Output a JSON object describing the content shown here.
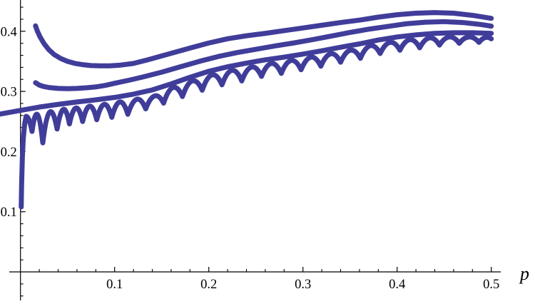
{
  "figure": {
    "background": "#ffffff",
    "axis_color": "#000000",
    "curve_color": "#403D9A"
  },
  "chart_data": {
    "type": "line",
    "title": "",
    "xlabel": "p",
    "ylabel": "",
    "xlim": [
      0,
      0.5
    ],
    "ylim": [
      0,
      0.45
    ],
    "grid": false,
    "legend": null,
    "x_axis": {
      "major_ticks": [
        0.1,
        0.2,
        0.3,
        0.4,
        0.5
      ],
      "major_tick_labels": [
        "0.1",
        "0.2",
        "0.3",
        "0.4",
        "0.5"
      ],
      "minor_ticks": [
        0.02,
        0.04,
        0.06,
        0.08,
        0.12,
        0.14,
        0.16,
        0.18,
        0.22,
        0.24,
        0.26,
        0.28,
        0.32,
        0.34,
        0.36,
        0.38,
        0.42,
        0.44,
        0.46,
        0.48
      ]
    },
    "y_axis": {
      "major_ticks": [
        0.1,
        0.2,
        0.3,
        0.4
      ],
      "major_tick_labels": [
        "0.1",
        "0.2",
        "0.3",
        "0.4"
      ],
      "minor_ticks": [
        -0.04,
        -0.02,
        0.02,
        0.04,
        0.06,
        0.08,
        0.12,
        0.14,
        0.16,
        0.18,
        0.22,
        0.24,
        0.26,
        0.28,
        0.32,
        0.34,
        0.36,
        0.38,
        0.42,
        0.44
      ]
    },
    "style": {
      "stroke": "#403D9A",
      "stroke_width": 7
    },
    "series": [
      {
        "name": "curve-1-top",
        "render": "smooth",
        "points": [
          [
            0.016,
            0.409
          ],
          [
            0.018,
            0.4
          ],
          [
            0.021,
            0.39
          ],
          [
            0.025,
            0.3795
          ],
          [
            0.03,
            0.3695
          ],
          [
            0.036,
            0.361
          ],
          [
            0.043,
            0.3545
          ],
          [
            0.05,
            0.35
          ],
          [
            0.058,
            0.3465
          ],
          [
            0.066,
            0.3445
          ],
          [
            0.075,
            0.343
          ],
          [
            0.085,
            0.3425
          ],
          [
            0.095,
            0.3425
          ],
          [
            0.105,
            0.3435
          ],
          [
            0.12,
            0.3465
          ],
          [
            0.135,
            0.3525
          ],
          [
            0.15,
            0.359
          ],
          [
            0.165,
            0.3655
          ],
          [
            0.18,
            0.372
          ],
          [
            0.2,
            0.3805
          ],
          [
            0.22,
            0.3875
          ],
          [
            0.24,
            0.3925
          ],
          [
            0.26,
            0.3965
          ],
          [
            0.28,
            0.401
          ],
          [
            0.3,
            0.4055
          ],
          [
            0.32,
            0.41
          ],
          [
            0.34,
            0.4145
          ],
          [
            0.36,
            0.4185
          ],
          [
            0.38,
            0.4235
          ],
          [
            0.4,
            0.4275
          ],
          [
            0.42,
            0.43
          ],
          [
            0.44,
            0.431
          ],
          [
            0.46,
            0.43
          ],
          [
            0.48,
            0.4265
          ],
          [
            0.5,
            0.4215
          ]
        ]
      },
      {
        "name": "curve-2",
        "render": "smooth",
        "points": [
          [
            0.016,
            0.3145
          ],
          [
            0.02,
            0.3105
          ],
          [
            0.025,
            0.308
          ],
          [
            0.03,
            0.3065
          ],
          [
            0.04,
            0.305
          ],
          [
            0.05,
            0.3045
          ],
          [
            0.06,
            0.305
          ],
          [
            0.07,
            0.306
          ],
          [
            0.08,
            0.3075
          ],
          [
            0.09,
            0.31
          ],
          [
            0.1,
            0.3135
          ],
          [
            0.115,
            0.3185
          ],
          [
            0.13,
            0.324
          ],
          [
            0.15,
            0.332
          ],
          [
            0.17,
            0.341
          ],
          [
            0.19,
            0.35
          ],
          [
            0.21,
            0.358
          ],
          [
            0.23,
            0.3645
          ],
          [
            0.25,
            0.37
          ],
          [
            0.27,
            0.3755
          ],
          [
            0.29,
            0.3805
          ],
          [
            0.31,
            0.386
          ],
          [
            0.33,
            0.392
          ],
          [
            0.35,
            0.398
          ],
          [
            0.37,
            0.4035
          ],
          [
            0.39,
            0.408
          ],
          [
            0.41,
            0.4125
          ],
          [
            0.43,
            0.415
          ],
          [
            0.45,
            0.416
          ],
          [
            0.47,
            0.4145
          ],
          [
            0.49,
            0.411
          ],
          [
            0.5,
            0.4085
          ]
        ]
      },
      {
        "name": "curve-3",
        "render": "smooth",
        "points": [
          [
            -0.021,
            0.2625
          ],
          [
            0,
            0.2685
          ],
          [
            0.02,
            0.274
          ],
          [
            0.04,
            0.2785
          ],
          [
            0.06,
            0.2825
          ],
          [
            0.08,
            0.286
          ],
          [
            0.1,
            0.29
          ],
          [
            0.12,
            0.2955
          ],
          [
            0.14,
            0.3025
          ],
          [
            0.16,
            0.3125
          ],
          [
            0.18,
            0.3235
          ],
          [
            0.2,
            0.3335
          ],
          [
            0.22,
            0.341
          ],
          [
            0.24,
            0.347
          ],
          [
            0.26,
            0.3525
          ],
          [
            0.28,
            0.357
          ],
          [
            0.3,
            0.362
          ],
          [
            0.32,
            0.3675
          ],
          [
            0.34,
            0.3735
          ],
          [
            0.36,
            0.379
          ],
          [
            0.38,
            0.3855
          ],
          [
            0.4,
            0.3905
          ],
          [
            0.42,
            0.394
          ],
          [
            0.44,
            0.3965
          ],
          [
            0.46,
            0.3975
          ],
          [
            0.48,
            0.3975
          ],
          [
            0.5,
            0.3965
          ]
        ]
      },
      {
        "name": "curve-4-scalloped",
        "render": "scallop",
        "lead_in": [
          [
            0.0008,
            0.108
          ],
          [
            0.0012,
            0.145
          ],
          [
            0.002,
            0.19
          ],
          [
            0.003,
            0.222
          ],
          [
            0.0045,
            0.2465
          ],
          [
            0.006,
            0.2585
          ]
        ],
        "cusps": [
          [
            0.0123,
            0.2335
          ],
          [
            0.0237,
            0.2145
          ],
          [
            0.0389,
            0.2375
          ],
          [
            0.052,
            0.246
          ],
          [
            0.066,
            0.25
          ],
          [
            0.081,
            0.253
          ],
          [
            0.097,
            0.257
          ],
          [
            0.114,
            0.262
          ],
          [
            0.133,
            0.271
          ],
          [
            0.152,
            0.2805
          ],
          [
            0.172,
            0.2915
          ],
          [
            0.193,
            0.302
          ],
          [
            0.214,
            0.311
          ],
          [
            0.235,
            0.3175
          ],
          [
            0.256,
            0.325
          ],
          [
            0.277,
            0.33
          ],
          [
            0.298,
            0.336
          ],
          [
            0.319,
            0.342
          ],
          [
            0.34,
            0.3485
          ],
          [
            0.361,
            0.355
          ],
          [
            0.382,
            0.363
          ],
          [
            0.403,
            0.3685
          ],
          [
            0.424,
            0.3725
          ],
          [
            0.445,
            0.377
          ],
          [
            0.466,
            0.38
          ],
          [
            0.487,
            0.3815
          ]
        ],
        "apexes": [
          [
            0.018,
            0.2615
          ],
          [
            0.031,
            0.2655
          ],
          [
            0.0455,
            0.27
          ],
          [
            0.059,
            0.2725
          ],
          [
            0.0735,
            0.2755
          ],
          [
            0.089,
            0.2785
          ],
          [
            0.1055,
            0.2825
          ],
          [
            0.1235,
            0.287
          ],
          [
            0.1425,
            0.2925
          ],
          [
            0.162,
            0.3065
          ],
          [
            0.1825,
            0.3175
          ],
          [
            0.2035,
            0.3275
          ],
          [
            0.2245,
            0.335
          ],
          [
            0.2455,
            0.3405
          ],
          [
            0.2665,
            0.3465
          ],
          [
            0.2875,
            0.3515
          ],
          [
            0.3085,
            0.357
          ],
          [
            0.3295,
            0.3625
          ],
          [
            0.3505,
            0.3685
          ],
          [
            0.3715,
            0.376
          ],
          [
            0.3925,
            0.3815
          ],
          [
            0.4135,
            0.386
          ],
          [
            0.4345,
            0.389
          ],
          [
            0.4555,
            0.3905
          ],
          [
            0.4765,
            0.3905
          ]
        ],
        "final_apex": [
          0.4935,
          0.3895
        ],
        "end": [
          0.5,
          0.3875
        ]
      }
    ]
  }
}
